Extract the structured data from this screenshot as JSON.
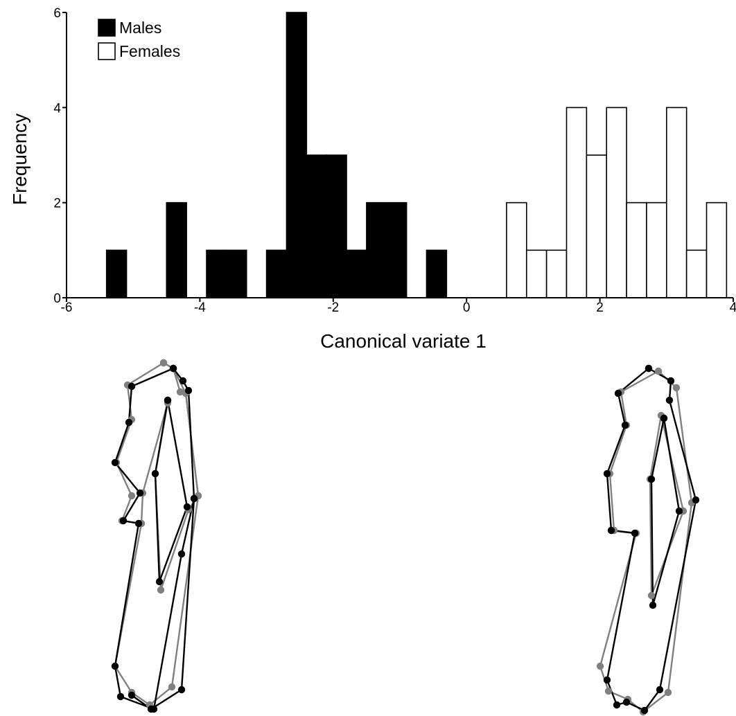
{
  "chart_data": {
    "type": "bar",
    "xlabel": "Canonical variate 1",
    "ylabel": "Frequency",
    "xlim": [
      -6,
      4
    ],
    "ylim": [
      0,
      6
    ],
    "x_ticks": [
      "-6",
      "-4",
      "-2",
      "0",
      "2",
      "4"
    ],
    "y_ticks": [
      "0",
      "2",
      "4",
      "6"
    ],
    "bin_width": 0.3,
    "legend_position": "top-left",
    "series": [
      {
        "name": "Males",
        "color": "#000000",
        "bins": [
          {
            "x": -5.4,
            "count": 1
          },
          {
            "x": -4.5,
            "count": 2
          },
          {
            "x": -3.9,
            "count": 1
          },
          {
            "x": -3.6,
            "count": 1
          },
          {
            "x": -3.0,
            "count": 1
          },
          {
            "x": -2.7,
            "count": 6
          },
          {
            "x": -2.4,
            "count": 3
          },
          {
            "x": -2.1,
            "count": 3
          },
          {
            "x": -1.8,
            "count": 1
          },
          {
            "x": -1.5,
            "count": 2
          },
          {
            "x": -1.2,
            "count": 2
          },
          {
            "x": -0.6,
            "count": 1
          }
        ]
      },
      {
        "name": "Females",
        "color": "#ffffff",
        "bins": [
          {
            "x": 0.6,
            "count": 2
          },
          {
            "x": 0.9,
            "count": 1
          },
          {
            "x": 1.2,
            "count": 1
          },
          {
            "x": 1.5,
            "count": 4
          },
          {
            "x": 1.8,
            "count": 3
          },
          {
            "x": 2.1,
            "count": 4
          },
          {
            "x": 2.4,
            "count": 2
          },
          {
            "x": 2.7,
            "count": 2
          },
          {
            "x": 3.0,
            "count": 4
          },
          {
            "x": 3.3,
            "count": 1
          },
          {
            "x": 3.6,
            "count": 2
          }
        ]
      }
    ],
    "shape_diagrams": [
      {
        "name": "left-shape-diagram",
        "grey": [
          [
            236,
            524
          ],
          [
            250,
            532
          ],
          [
            260,
            566
          ],
          [
            268,
            568
          ],
          [
            286,
            716
          ],
          [
            272,
            736
          ],
          [
            232,
            852
          ],
          [
            224,
            684
          ],
          [
            242,
            582
          ],
          [
            206,
            712
          ],
          [
            204,
            756
          ],
          [
            176,
            752
          ],
          [
            190,
            716
          ],
          [
            168,
            668
          ],
          [
            190,
            606
          ],
          [
            184,
            556
          ],
          [
            236,
            524
          ]
        ],
        "black": [
          [
            250,
            532
          ],
          [
            264,
            550
          ],
          [
            272,
            564
          ],
          [
            280,
            720
          ],
          [
            262,
            800
          ],
          [
            222,
            1024
          ],
          [
            174,
            1006
          ],
          [
            166,
            962
          ],
          [
            200,
            756
          ],
          [
            178,
            752
          ],
          [
            202,
            712
          ],
          [
            166,
            668
          ],
          [
            186,
            610
          ],
          [
            190,
            558
          ],
          [
            250,
            532
          ]
        ],
        "grey_outline": [
          [
            236,
            524
          ],
          [
            250,
            532
          ],
          [
            268,
            568
          ],
          [
            286,
            716
          ],
          [
            248,
            992
          ],
          [
            216,
            1018
          ],
          [
            190,
            1000
          ],
          [
            166,
            962
          ],
          [
            204,
            756
          ]
        ],
        "black_inner": [
          [
            242,
            578
          ],
          [
            270,
            732
          ],
          [
            230,
            840
          ],
          [
            224,
            684
          ],
          [
            242,
            578
          ]
        ],
        "black_outer_extra": [
          [
            190,
            1004
          ],
          [
            218,
            1024
          ],
          [
            262,
            996
          ],
          [
            280,
            720
          ]
        ]
      },
      {
        "name": "right-shape-diagram",
        "grey": [
          [
            950,
            536
          ],
          [
            976,
            560
          ],
          [
            998,
            726
          ],
          [
            964,
            1000
          ],
          [
            928,
            1028
          ],
          [
            906,
            1010
          ],
          [
            878,
            998
          ],
          [
            866,
            962
          ],
          [
            918,
            770
          ],
          [
            886,
            766
          ],
          [
            880,
            684
          ],
          [
            904,
            614
          ],
          [
            896,
            566
          ],
          [
            950,
            536
          ]
        ],
        "black": [
          [
            936,
            532
          ],
          [
            968,
            550
          ],
          [
            966,
            578
          ],
          [
            1004,
            722
          ],
          [
            952,
            996
          ],
          [
            930,
            1026
          ],
          [
            904,
            1014
          ],
          [
            890,
            1018
          ],
          [
            876,
            982
          ],
          [
            916,
            770
          ],
          [
            882,
            766
          ],
          [
            876,
            684
          ],
          [
            902,
            614
          ],
          [
            892,
            568
          ],
          [
            936,
            532
          ]
        ],
        "grey_inner": [
          [
            954,
            600
          ],
          [
            986,
            738
          ],
          [
            940,
            860
          ],
          [
            938,
            692
          ],
          [
            954,
            600
          ]
        ],
        "black_inner": [
          [
            958,
            604
          ],
          [
            980,
            738
          ],
          [
            942,
            874
          ],
          [
            940,
            692
          ],
          [
            958,
            604
          ]
        ]
      }
    ]
  }
}
